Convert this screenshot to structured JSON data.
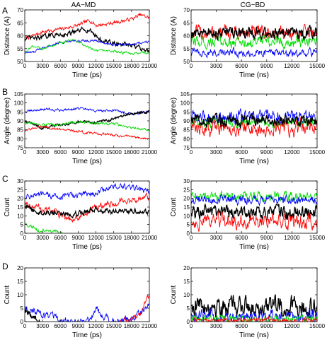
{
  "column_titles": [
    "AA−MD",
    "CG−BD"
  ],
  "row_letters": [
    "A",
    "B",
    "C",
    "D"
  ],
  "colors": {
    "black": "#000000",
    "red": "#ff0000",
    "green": "#00dd00",
    "blue": "#0000ff"
  },
  "chart_data": [
    {
      "type": "line",
      "panel": "A",
      "column": "AA−MD",
      "xlabel": "Time (ps)",
      "ylabel": "Distance (A)",
      "xlim": [
        0,
        21000
      ],
      "ylim": [
        50,
        70
      ],
      "xticks": [
        0,
        3000,
        6000,
        9000,
        12000,
        15000,
        18000,
        21000
      ],
      "yticks": [
        50,
        55,
        60,
        65,
        70
      ],
      "series": [
        {
          "color": "red",
          "noise": 0.6,
          "x": [
            0,
            1500,
            3000,
            6000,
            9000,
            11000,
            12000,
            15000,
            18000,
            19500,
            21000
          ],
          "y": [
            59,
            60,
            61.5,
            62.5,
            64,
            66,
            64,
            65,
            66.5,
            68,
            67
          ]
        },
        {
          "color": "black",
          "noise": 0.7,
          "x": [
            0,
            2000,
            4000,
            6000,
            8000,
            10000,
            11000,
            13000,
            15000,
            17000,
            19000,
            21000
          ],
          "y": [
            59,
            59,
            60,
            60.5,
            61,
            62.5,
            62,
            58,
            57,
            56.5,
            55.5,
            54
          ]
        },
        {
          "color": "blue",
          "noise": 0.4,
          "x": [
            0,
            1500,
            3000,
            6000,
            9000,
            12000,
            15000,
            18000,
            21000
          ],
          "y": [
            53.5,
            53.5,
            55.5,
            57.5,
            58,
            58,
            56.5,
            56.5,
            58
          ]
        },
        {
          "color": "green",
          "noise": 0.4,
          "x": [
            0,
            1500,
            3000,
            6000,
            8000,
            10000,
            12000,
            15000,
            18000,
            21000
          ],
          "y": [
            54,
            56,
            55,
            57,
            58.5,
            56.5,
            54,
            54,
            53,
            53.5
          ]
        }
      ]
    },
    {
      "type": "line",
      "panel": "A",
      "column": "CG−BD",
      "xlabel": "Time (ns)",
      "ylabel": "Distance (A)",
      "xlim": [
        0,
        15000
      ],
      "ylim": [
        50,
        70
      ],
      "xticks": [
        0,
        3000,
        6000,
        9000,
        12000,
        15000
      ],
      "yticks": [
        50,
        55,
        60,
        65,
        70
      ],
      "series": [
        {
          "color": "red",
          "noise": 2.2,
          "x": [
            0,
            15000
          ],
          "y": [
            61,
            61
          ]
        },
        {
          "color": "green",
          "noise": 1.8,
          "x": [
            0,
            15000
          ],
          "y": [
            57.5,
            57.5
          ]
        },
        {
          "color": "black",
          "noise": 1.8,
          "x": [
            0,
            15000
          ],
          "y": [
            61,
            61
          ]
        },
        {
          "color": "blue",
          "noise": 1.3,
          "x": [
            0,
            15000
          ],
          "y": [
            53.5,
            53.5
          ]
        }
      ]
    },
    {
      "type": "line",
      "panel": "B",
      "column": "AA−MD",
      "xlabel": "Time (ps)",
      "ylabel": "Angle (degree)",
      "xlim": [
        0,
        21000
      ],
      "ylim": [
        75,
        105
      ],
      "xticks": [
        0,
        3000,
        6000,
        9000,
        12000,
        15000,
        18000,
        21000
      ],
      "yticks": [
        75,
        80,
        85,
        90,
        95,
        100,
        105
      ],
      "series": [
        {
          "color": "blue",
          "noise": 0.6,
          "x": [
            0,
            3000,
            6000,
            9000,
            12000,
            15000,
            18000,
            21000
          ],
          "y": [
            95,
            96.5,
            96,
            97,
            95.5,
            96,
            94,
            95
          ]
        },
        {
          "color": "black",
          "noise": 0.6,
          "x": [
            0,
            3000,
            6000,
            9000,
            12000,
            15000,
            18000,
            21000
          ],
          "y": [
            90,
            86,
            88,
            89.5,
            89,
            91,
            94,
            95
          ]
        },
        {
          "color": "green",
          "noise": 0.6,
          "x": [
            0,
            3000,
            6000,
            9000,
            12000,
            15000,
            18000,
            21000
          ],
          "y": [
            89,
            88,
            87.5,
            89.5,
            88.5,
            88.5,
            86,
            85
          ]
        },
        {
          "color": "red",
          "noise": 0.6,
          "x": [
            0,
            3000,
            6000,
            9000,
            12000,
            15000,
            18000,
            21000
          ],
          "y": [
            85,
            87,
            85,
            84,
            83,
            82,
            81,
            80
          ]
        }
      ]
    },
    {
      "type": "line",
      "panel": "B",
      "column": "CG−BD",
      "xlabel": "Time (ns)",
      "ylabel": "Angle (degree)",
      "xlim": [
        0,
        15000
      ],
      "ylim": [
        75,
        105
      ],
      "xticks": [
        0,
        3000,
        6000,
        9000,
        12000,
        15000
      ],
      "yticks": [
        75,
        80,
        85,
        90,
        95,
        100,
        105
      ],
      "series": [
        {
          "color": "blue",
          "noise": 3.0,
          "x": [
            0,
            15000
          ],
          "y": [
            92,
            92
          ]
        },
        {
          "color": "green",
          "noise": 2.2,
          "x": [
            0,
            15000
          ],
          "y": [
            89,
            89
          ]
        },
        {
          "color": "red",
          "noise": 3.5,
          "x": [
            0,
            15000
          ],
          "y": [
            86,
            86
          ]
        },
        {
          "color": "black",
          "noise": 2.5,
          "x": [
            0,
            15000
          ],
          "y": [
            90,
            90
          ]
        }
      ]
    },
    {
      "type": "line",
      "panel": "C",
      "column": "AA−MD",
      "xlabel": "Time (ps)",
      "ylabel": "Count",
      "xlim": [
        0,
        21000
      ],
      "ylim": [
        0,
        30
      ],
      "xticks": [
        0,
        3000,
        6000,
        9000,
        12000,
        15000,
        18000,
        21000
      ],
      "yticks": [
        0,
        5,
        10,
        15,
        20,
        25,
        30
      ],
      "series": [
        {
          "color": "blue",
          "noise": 1.4,
          "x": [
            0,
            2000,
            6000,
            9000,
            12000,
            15000,
            18000,
            21000
          ],
          "y": [
            21,
            22,
            21,
            22,
            23,
            27,
            26,
            24
          ]
        },
        {
          "color": "red",
          "noise": 1.5,
          "x": [
            0,
            2000,
            5000,
            8000,
            10000,
            12000,
            15000,
            18000,
            21000
          ],
          "y": [
            18,
            15,
            12,
            8,
            10,
            15,
            17,
            19,
            21
          ]
        },
        {
          "color": "black",
          "noise": 1.2,
          "x": [
            0,
            2000,
            4000,
            8000,
            12000,
            15000,
            18000,
            21000
          ],
          "y": [
            16,
            12,
            12,
            11,
            14,
            12,
            13,
            12
          ]
        },
        {
          "color": "green",
          "noise": 0.8,
          "x": [
            0,
            1500,
            2500,
            3500,
            5000,
            6500
          ],
          "y": [
            5,
            3,
            1,
            2,
            1,
            0
          ]
        }
      ]
    },
    {
      "type": "line",
      "panel": "C",
      "column": "CG−BD",
      "xlabel": "Time (ns)",
      "ylabel": "Count",
      "xlim": [
        0,
        15000
      ],
      "ylim": [
        0,
        30
      ],
      "xticks": [
        0,
        3000,
        6000,
        9000,
        12000,
        15000
      ],
      "yticks": [
        0,
        5,
        10,
        15,
        20,
        25,
        30
      ],
      "series": [
        {
          "color": "green",
          "noise": 2.2,
          "x": [
            0,
            15000
          ],
          "y": [
            21,
            21
          ]
        },
        {
          "color": "blue",
          "noise": 2.0,
          "x": [
            0,
            15000
          ],
          "y": [
            19,
            19
          ]
        },
        {
          "color": "black",
          "noise": 3.0,
          "x": [
            0,
            15000
          ],
          "y": [
            12,
            12
          ]
        },
        {
          "color": "red",
          "noise": 3.5,
          "x": [
            0,
            15000
          ],
          "y": [
            7,
            7
          ]
        }
      ]
    },
    {
      "type": "line",
      "panel": "D",
      "column": "AA−MD",
      "xlabel": "Time (ps)",
      "ylabel": "Count",
      "xlim": [
        0,
        21000
      ],
      "ylim": [
        0,
        20
      ],
      "xticks": [
        0,
        3000,
        6000,
        9000,
        12000,
        15000,
        18000,
        21000
      ],
      "yticks": [
        0,
        5,
        10,
        15,
        20
      ],
      "series": [
        {
          "color": "blue",
          "noise": 1.2,
          "x": [
            0,
            2000,
            4000,
            6000,
            9000,
            11000,
            12000,
            13000,
            14000,
            16000,
            18000,
            20000,
            21000
          ],
          "y": [
            5,
            4,
            2,
            0,
            0,
            1,
            5,
            3,
            1,
            0,
            1,
            4,
            6
          ]
        },
        {
          "color": "black",
          "noise": 0.8,
          "x": [
            0,
            1000,
            2000,
            2500
          ],
          "y": [
            4,
            2,
            1,
            0
          ]
        },
        {
          "color": "red",
          "noise": 0.8,
          "x": [
            16000,
            18000,
            19500,
            20500,
            21000
          ],
          "y": [
            0,
            1,
            3,
            8,
            10
          ]
        }
      ]
    },
    {
      "type": "line",
      "panel": "D",
      "column": "CG−BD",
      "xlabel": "Time (ns)",
      "ylabel": "Count",
      "xlim": [
        0,
        15000
      ],
      "ylim": [
        0,
        20
      ],
      "xticks": [
        0,
        3000,
        6000,
        9000,
        12000,
        15000
      ],
      "yticks": [
        0,
        5,
        10,
        15,
        20
      ],
      "series": [
        {
          "color": "black",
          "noise": 3.0,
          "x": [
            0,
            15000
          ],
          "y": [
            6,
            6
          ]
        },
        {
          "color": "blue",
          "noise": 2.0,
          "x": [
            0,
            15000
          ],
          "y": [
            2,
            2
          ]
        },
        {
          "color": "green",
          "noise": 1.2,
          "x": [
            0,
            15000
          ],
          "y": [
            1,
            1
          ]
        },
        {
          "color": "red",
          "noise": 0.8,
          "x": [
            0,
            15000
          ],
          "y": [
            0.5,
            0.5
          ]
        }
      ]
    }
  ]
}
